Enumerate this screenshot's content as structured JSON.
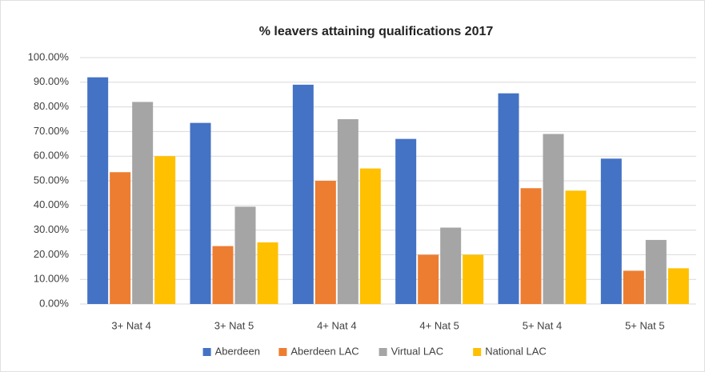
{
  "chart_data": {
    "type": "bar",
    "title": "% leavers attaining qualifications 2017",
    "categories": [
      "3+ Nat 4",
      "3+ Nat 5",
      "4+ Nat 4",
      "4+ Nat 5",
      "5+ Nat 4",
      "5+ Nat 5"
    ],
    "series": [
      {
        "name": "Aberdeen",
        "color": "#4472c4",
        "values": [
          92,
          73.5,
          89,
          67,
          85.5,
          59
        ]
      },
      {
        "name": "Aberdeen LAC",
        "color": "#ed7d31",
        "values": [
          53.5,
          23.5,
          50,
          20,
          47,
          13.5
        ]
      },
      {
        "name": "Virtual LAC",
        "color": "#a5a5a5",
        "values": [
          82,
          39.5,
          75,
          31,
          69,
          26
        ]
      },
      {
        "name": "National LAC",
        "color": "#ffc000",
        "values": [
          60,
          25,
          55,
          20,
          46,
          14.5
        ]
      }
    ],
    "ylim": [
      0,
      100
    ],
    "yticks": [
      {
        "value": 0,
        "label": "0.00%"
      },
      {
        "value": 10,
        "label": "10.00%"
      },
      {
        "value": 20,
        "label": "20.00%"
      },
      {
        "value": 30,
        "label": "30.00%"
      },
      {
        "value": 40,
        "label": "40.00%"
      },
      {
        "value": 50,
        "label": "50.00%"
      },
      {
        "value": 60,
        "label": "60.00%"
      },
      {
        "value": 70,
        "label": "70.00%"
      },
      {
        "value": 80,
        "label": "80.00%"
      },
      {
        "value": 90,
        "label": "90.00%"
      },
      {
        "value": 100,
        "label": "100.00%"
      }
    ],
    "grid": true,
    "legend": "bottom"
  }
}
